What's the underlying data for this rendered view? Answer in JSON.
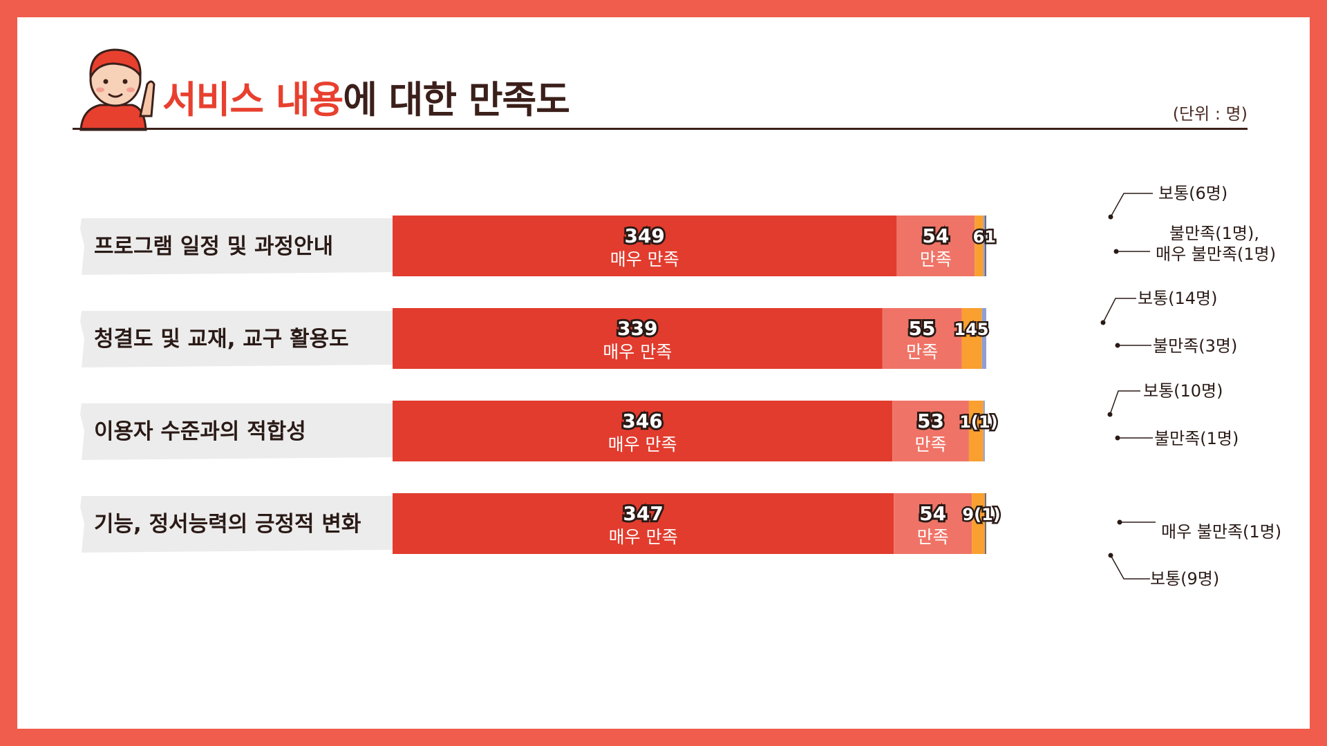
{
  "title": {
    "highlight": "서비스 내용",
    "rest": "에 대한 만족도"
  },
  "unit_label": "(단위 : 명)",
  "colors": {
    "frame": "#f15d4d",
    "very_satisfied": "#e23c2e",
    "satisfied": "#ef7467",
    "neutral": "#f9a030",
    "dissatisfied": "#8f9fd0",
    "very_dissatisfied": "#6c6c7a"
  },
  "chart_data": {
    "type": "bar",
    "orientation": "horizontal-stacked",
    "categories": [
      "프로그램 일정 및 과정안내",
      "청결도 및 교재, 교구 활용도",
      "이용자 수준과의 적합성",
      "기능, 정서능력의 긍정적 변화"
    ],
    "series": [
      {
        "name": "매우 만족",
        "values": [
          349,
          339,
          346,
          347
        ]
      },
      {
        "name": "만족",
        "values": [
          54,
          55,
          53,
          54
        ]
      },
      {
        "name": "보통",
        "values": [
          6,
          14,
          10,
          9
        ]
      },
      {
        "name": "불만족",
        "values": [
          1,
          3,
          1,
          0
        ]
      },
      {
        "name": "매우 불만족",
        "values": [
          1,
          0,
          0,
          1
        ]
      }
    ],
    "segment_labels": [
      {
        "main": [
          "349",
          "54"
        ],
        "small": "61"
      },
      {
        "main": [
          "339",
          "55"
        ],
        "small": "145"
      },
      {
        "main": [
          "346",
          "53"
        ],
        "small": "1(1)"
      },
      {
        "main": [
          "347",
          "54"
        ],
        "small": "9(1)"
      }
    ],
    "callouts": [
      [
        "보통(6명)",
        "불만족(1명),",
        "매우 불만족(1명)"
      ],
      [
        "보통(14명)",
        "불만족(3명)"
      ],
      [
        "보통(10명)",
        "불만족(1명)"
      ],
      [
        "매우 불만족(1명)",
        "보통(9명)"
      ]
    ]
  }
}
